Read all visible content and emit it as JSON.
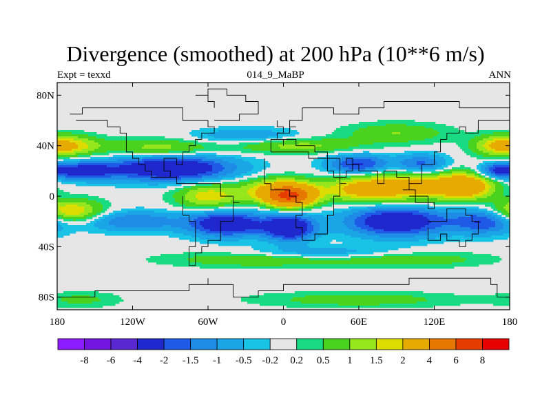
{
  "title": "Divergence (smoothed) at 200 hPa (10**6 m/s)",
  "subtitle_left": "Expt = texxd",
  "subtitle_center": "014_9_MaBP",
  "subtitle_right": "ANN",
  "x_ticks": [
    "180",
    "120W",
    "60W",
    "0",
    "60E",
    "120E",
    "180"
  ],
  "y_ticks": [
    "80N",
    "40N",
    "0",
    "40S",
    "80S"
  ],
  "colorbar": {
    "colors": [
      "#8c1cff",
      "#7314e0",
      "#5a28d2",
      "#1e28cc",
      "#1e5ae6",
      "#1e8ce6",
      "#19a5e6",
      "#19c3e6",
      "#e6e6e6",
      "#19dc82",
      "#4bd21e",
      "#96e61e",
      "#dcdc00",
      "#e6aa00",
      "#e67800",
      "#e63c00",
      "#e60000"
    ],
    "labels": [
      "-8",
      "-6",
      "-4",
      "-2",
      "-1.5",
      "-1",
      "-0.5",
      "-0.2",
      "0.2",
      "0.5",
      "1",
      "1.5",
      "2",
      "4",
      "6",
      "8"
    ]
  },
  "chart_data": {
    "type": "heatmap",
    "variable": "Divergence (smoothed) at 200 hPa",
    "units": "10**6 m/s",
    "x_range": [
      -180,
      180
    ],
    "y_range": [
      -90,
      90
    ],
    "levels": [
      -8,
      -6,
      -4,
      -2,
      -1.5,
      -1,
      -0.5,
      -0.2,
      0.2,
      0.5,
      1,
      1.5,
      2,
      4,
      6,
      8
    ],
    "features": [
      {
        "lon": 5,
        "lat": 0,
        "value": 5
      },
      {
        "lon": -90,
        "lat": 22,
        "value": -3
      },
      {
        "lon": -45,
        "lat": -20,
        "value": -3
      },
      {
        "lon": 5,
        "lat": -25,
        "value": -3
      },
      {
        "lon": 90,
        "lat": -20,
        "value": -3
      },
      {
        "lon": 100,
        "lat": 8,
        "value": 2
      },
      {
        "lon": 140,
        "lat": 8,
        "value": 3
      },
      {
        "lon": -60,
        "lat": 0,
        "value": 1.5
      },
      {
        "lon": -170,
        "lat": -12,
        "value": 2
      },
      {
        "lon": -170,
        "lat": 40,
        "value": 1.5
      },
      {
        "lon": 170,
        "lat": 40,
        "value": 1.5
      }
    ]
  }
}
